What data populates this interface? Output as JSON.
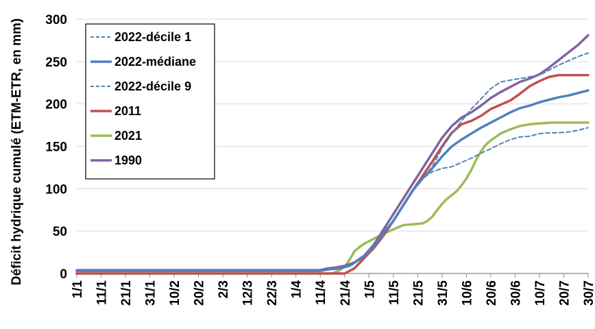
{
  "chart_data": {
    "type": "line",
    "ylabel": "Déficit hydrique cumulé (ETM-ETR, en mm)",
    "xlabel": "",
    "ylim": [
      0,
      300
    ],
    "yticks": [
      0,
      50,
      100,
      150,
      200,
      250,
      300
    ],
    "xlim": [
      0,
      210
    ],
    "xticks": [
      {
        "label": "1/1",
        "day": 0
      },
      {
        "label": "11/1",
        "day": 10
      },
      {
        "label": "21/1",
        "day": 20
      },
      {
        "label": "31/1",
        "day": 30
      },
      {
        "label": "10/2",
        "day": 40
      },
      {
        "label": "20/2",
        "day": 50
      },
      {
        "label": "2/3",
        "day": 60
      },
      {
        "label": "12/3",
        "day": 70
      },
      {
        "label": "22/3",
        "day": 80
      },
      {
        "label": "1/4",
        "day": 90
      },
      {
        "label": "11/4",
        "day": 100
      },
      {
        "label": "21/4",
        "day": 110
      },
      {
        "label": "1/5",
        "day": 120
      },
      {
        "label": "11/5",
        "day": 130
      },
      {
        "label": "21/5",
        "day": 140
      },
      {
        "label": "31/5",
        "day": 150
      },
      {
        "label": "10/6",
        "day": 160
      },
      {
        "label": "20/6",
        "day": 170
      },
      {
        "label": "30/6",
        "day": 180
      },
      {
        "label": "10/7",
        "day": 190
      },
      {
        "label": "20/7",
        "day": 200
      },
      {
        "label": "30/7",
        "day": 210
      }
    ],
    "grid": "horizontal",
    "legend_position": "top-left",
    "series": [
      {
        "name": "2022-décile 1",
        "color": "#4f81bd",
        "style": "dashed",
        "width": 2,
        "points": [
          [
            0,
            3
          ],
          [
            100,
            3
          ],
          [
            104,
            5
          ],
          [
            108,
            6
          ],
          [
            112,
            9
          ],
          [
            118,
            20
          ],
          [
            122,
            32
          ],
          [
            126,
            48
          ],
          [
            130,
            62
          ],
          [
            134,
            80
          ],
          [
            138,
            98
          ],
          [
            142,
            112
          ],
          [
            146,
            120
          ],
          [
            150,
            124
          ],
          [
            154,
            126
          ],
          [
            158,
            131
          ],
          [
            162,
            136
          ],
          [
            166,
            142
          ],
          [
            170,
            147
          ],
          [
            174,
            153
          ],
          [
            178,
            158
          ],
          [
            182,
            161
          ],
          [
            186,
            162
          ],
          [
            190,
            165
          ],
          [
            194,
            166
          ],
          [
            198,
            166
          ],
          [
            202,
            167
          ],
          [
            206,
            169
          ],
          [
            210,
            172
          ]
        ]
      },
      {
        "name": "2022-médiane",
        "color": "#4f81bd",
        "style": "solid",
        "width": 3.5,
        "points": [
          [
            0,
            3
          ],
          [
            100,
            3
          ],
          [
            104,
            5
          ],
          [
            108,
            6
          ],
          [
            112,
            9
          ],
          [
            118,
            20
          ],
          [
            122,
            32
          ],
          [
            126,
            48
          ],
          [
            130,
            62
          ],
          [
            134,
            80
          ],
          [
            138,
            98
          ],
          [
            142,
            112
          ],
          [
            146,
            124
          ],
          [
            150,
            138
          ],
          [
            154,
            150
          ],
          [
            158,
            158
          ],
          [
            162,
            165
          ],
          [
            166,
            172
          ],
          [
            170,
            178
          ],
          [
            174,
            184
          ],
          [
            178,
            190
          ],
          [
            182,
            195
          ],
          [
            186,
            198
          ],
          [
            190,
            202
          ],
          [
            194,
            205
          ],
          [
            198,
            208
          ],
          [
            202,
            210
          ],
          [
            206,
            213
          ],
          [
            210,
            216
          ]
        ]
      },
      {
        "name": "2022-décile 9",
        "color": "#4f81bd",
        "style": "dashed",
        "width": 2,
        "points": [
          [
            0,
            3
          ],
          [
            100,
            3
          ],
          [
            104,
            5
          ],
          [
            108,
            6
          ],
          [
            112,
            9
          ],
          [
            118,
            20
          ],
          [
            122,
            32
          ],
          [
            126,
            48
          ],
          [
            130,
            62
          ],
          [
            134,
            80
          ],
          [
            138,
            98
          ],
          [
            142,
            112
          ],
          [
            146,
            126
          ],
          [
            150,
            148
          ],
          [
            154,
            165
          ],
          [
            158,
            180
          ],
          [
            162,
            194
          ],
          [
            166,
            206
          ],
          [
            170,
            218
          ],
          [
            174,
            226
          ],
          [
            178,
            228
          ],
          [
            182,
            230
          ],
          [
            186,
            232
          ],
          [
            190,
            234
          ],
          [
            194,
            240
          ],
          [
            198,
            246
          ],
          [
            202,
            251
          ],
          [
            206,
            256
          ],
          [
            210,
            260
          ]
        ]
      },
      {
        "name": "2011",
        "color": "#c0504d",
        "style": "solid",
        "width": 3.5,
        "points": [
          [
            0,
            0
          ],
          [
            110,
            0
          ],
          [
            114,
            6
          ],
          [
            118,
            18
          ],
          [
            122,
            30
          ],
          [
            126,
            45
          ],
          [
            130,
            62
          ],
          [
            134,
            80
          ],
          [
            138,
            98
          ],
          [
            142,
            115
          ],
          [
            146,
            132
          ],
          [
            150,
            150
          ],
          [
            154,
            166
          ],
          [
            158,
            176
          ],
          [
            162,
            180
          ],
          [
            166,
            186
          ],
          [
            170,
            194
          ],
          [
            174,
            199
          ],
          [
            178,
            204
          ],
          [
            182,
            212
          ],
          [
            186,
            221
          ],
          [
            190,
            227
          ],
          [
            194,
            232
          ],
          [
            198,
            234
          ],
          [
            202,
            234
          ],
          [
            206,
            234
          ],
          [
            210,
            234
          ]
        ]
      },
      {
        "name": "2021",
        "color": "#9bbb59",
        "style": "solid",
        "width": 3.5,
        "points": [
          [
            0,
            0
          ],
          [
            105,
            0
          ],
          [
            108,
            4
          ],
          [
            110,
            8
          ],
          [
            112,
            16
          ],
          [
            114,
            26
          ],
          [
            116,
            31
          ],
          [
            118,
            35
          ],
          [
            122,
            41
          ],
          [
            126,
            47
          ],
          [
            130,
            52
          ],
          [
            134,
            57
          ],
          [
            138,
            58
          ],
          [
            142,
            59
          ],
          [
            144,
            62
          ],
          [
            146,
            67
          ],
          [
            148,
            75
          ],
          [
            150,
            82
          ],
          [
            152,
            88
          ],
          [
            156,
            97
          ],
          [
            158,
            104
          ],
          [
            160,
            112
          ],
          [
            162,
            122
          ],
          [
            164,
            134
          ],
          [
            166,
            144
          ],
          [
            168,
            152
          ],
          [
            170,
            157
          ],
          [
            172,
            161
          ],
          [
            174,
            165
          ],
          [
            178,
            170
          ],
          [
            182,
            174
          ],
          [
            186,
            176
          ],
          [
            190,
            177
          ],
          [
            195,
            178
          ],
          [
            200,
            178
          ],
          [
            205,
            178
          ],
          [
            210,
            178
          ]
        ]
      },
      {
        "name": "1990",
        "color": "#8064a2",
        "style": "solid",
        "width": 3.5,
        "points": [
          [
            0,
            4
          ],
          [
            100,
            4
          ],
          [
            103,
            6
          ],
          [
            106,
            7
          ],
          [
            110,
            9
          ],
          [
            114,
            13
          ],
          [
            118,
            21
          ],
          [
            122,
            34
          ],
          [
            126,
            52
          ],
          [
            130,
            70
          ],
          [
            134,
            88
          ],
          [
            138,
            106
          ],
          [
            142,
            124
          ],
          [
            146,
            142
          ],
          [
            150,
            160
          ],
          [
            154,
            174
          ],
          [
            158,
            184
          ],
          [
            162,
            190
          ],
          [
            166,
            198
          ],
          [
            170,
            207
          ],
          [
            174,
            214
          ],
          [
            178,
            220
          ],
          [
            182,
            226
          ],
          [
            186,
            230
          ],
          [
            190,
            235
          ],
          [
            194,
            243
          ],
          [
            198,
            252
          ],
          [
            202,
            261
          ],
          [
            206,
            270
          ],
          [
            210,
            281
          ]
        ]
      }
    ]
  }
}
